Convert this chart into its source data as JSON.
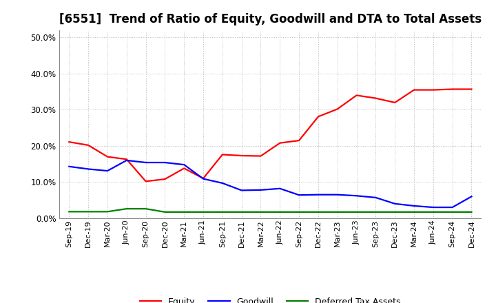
{
  "title": "[6551]  Trend of Ratio of Equity, Goodwill and DTA to Total Assets",
  "x_labels": [
    "Sep-19",
    "Dec-19",
    "Mar-20",
    "Jun-20",
    "Sep-20",
    "Dec-20",
    "Mar-21",
    "Jun-21",
    "Sep-21",
    "Dec-21",
    "Mar-22",
    "Jun-22",
    "Sep-22",
    "Dec-22",
    "Mar-23",
    "Jun-23",
    "Sep-23",
    "Dec-23",
    "Mar-24",
    "Jun-24",
    "Sep-24",
    "Dec-24"
  ],
  "equity": [
    0.211,
    0.202,
    0.17,
    0.163,
    0.102,
    0.108,
    0.138,
    0.11,
    0.176,
    0.173,
    0.172,
    0.208,
    0.215,
    0.281,
    0.302,
    0.34,
    0.332,
    0.32,
    0.355,
    0.355,
    0.357,
    0.357
  ],
  "goodwill": [
    0.143,
    0.136,
    0.131,
    0.16,
    0.154,
    0.154,
    0.148,
    0.109,
    0.097,
    0.077,
    0.078,
    0.082,
    0.064,
    0.065,
    0.065,
    0.062,
    0.057,
    0.04,
    0.034,
    0.03,
    0.03,
    0.06
  ],
  "dta": [
    0.018,
    0.018,
    0.018,
    0.026,
    0.026,
    0.017,
    0.017,
    0.017,
    0.017,
    0.017,
    0.017,
    0.017,
    0.017,
    0.017,
    0.017,
    0.017,
    0.017,
    0.017,
    0.017,
    0.017,
    0.017,
    0.017
  ],
  "equity_color": "#ff0000",
  "goodwill_color": "#0000ff",
  "dta_color": "#008000",
  "ylim": [
    0.0,
    0.52
  ],
  "yticks": [
    0.0,
    0.1,
    0.2,
    0.3,
    0.4,
    0.5
  ],
  "bg_color": "#ffffff",
  "grid_color": "#bbbbbb",
  "title_fontsize": 12,
  "tick_fontsize": 8,
  "legend_labels": [
    "Equity",
    "Goodwill",
    "Deferred Tax Assets"
  ],
  "linewidth": 1.6
}
